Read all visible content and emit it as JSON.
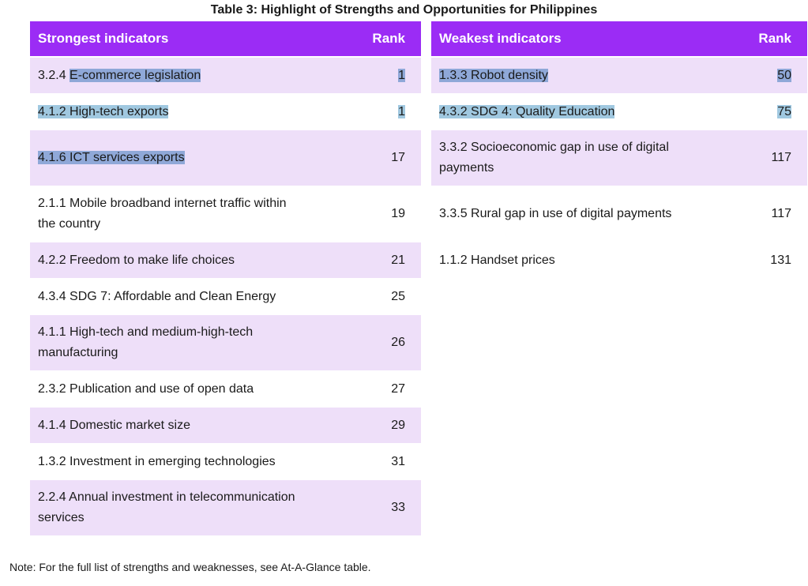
{
  "title": "Table 3: Highlight of Strengths and Opportunities for Philippines",
  "strongest": {
    "header": "Strongest indicators",
    "rank_header": "Rank",
    "rows": [
      {
        "code": "3.2.4",
        "label": "E-commerce legislation",
        "rank": "1",
        "shaded": true,
        "selected": "label"
      },
      {
        "code": "4.1.2",
        "label": "High-tech exports",
        "rank": "1",
        "shaded": false,
        "selected": "all"
      },
      {
        "code": "4.1.6",
        "label": "ICT services exports",
        "rank": "17",
        "shaded": true,
        "selected": "all-norank"
      },
      {
        "code": "2.1.1",
        "label": "Mobile broadband internet traffic within the country",
        "rank": "19",
        "shaded": false
      },
      {
        "code": "4.2.2",
        "label": "Freedom to make life choices",
        "rank": "21",
        "shaded": true
      },
      {
        "code": "4.3.4",
        "label": "SDG 7: Affordable and Clean Energy",
        "rank": "25",
        "shaded": false
      },
      {
        "code": "4.1.1",
        "label": "High-tech and medium-high-tech manufacturing",
        "rank": "26",
        "shaded": true
      },
      {
        "code": "2.3.2",
        "label": "Publication and use of open data",
        "rank": "27",
        "shaded": false
      },
      {
        "code": "4.1.4",
        "label": "Domestic market size",
        "rank": "29",
        "shaded": true
      },
      {
        "code": "1.3.2",
        "label": "Investment in emerging technologies",
        "rank": "31",
        "shaded": false
      },
      {
        "code": "2.2.4",
        "label": "Annual investment in telecommunication services",
        "rank": "33",
        "shaded": true
      }
    ]
  },
  "weakest": {
    "header": "Weakest indicators",
    "rank_header": "Rank",
    "rows": [
      {
        "code": "1.3.3",
        "label": "Robot density",
        "rank": "50",
        "shaded": true,
        "selected": "all"
      },
      {
        "code": "4.3.2",
        "label": "SDG 4: Quality Education",
        "rank": "75",
        "shaded": false,
        "selected": "all"
      },
      {
        "code": "3.3.2",
        "label": "Socioeconomic gap in use of digital payments",
        "rank": "117",
        "shaded": true
      },
      {
        "code": "3.3.5",
        "label": "Rural gap in use of digital payments",
        "rank": "117",
        "shaded": false
      },
      {
        "code": "1.1.2",
        "label": "Handset prices",
        "rank": "131",
        "shaded": false
      }
    ]
  },
  "note": "Note: For the full list of strengths and weaknesses, see At-A-Glance table.",
  "colors": {
    "header": "#9b2cf5",
    "row_shade": "#eedff9",
    "selection": "#8fa8d8",
    "selection_on_white": "#a0c8e0"
  }
}
